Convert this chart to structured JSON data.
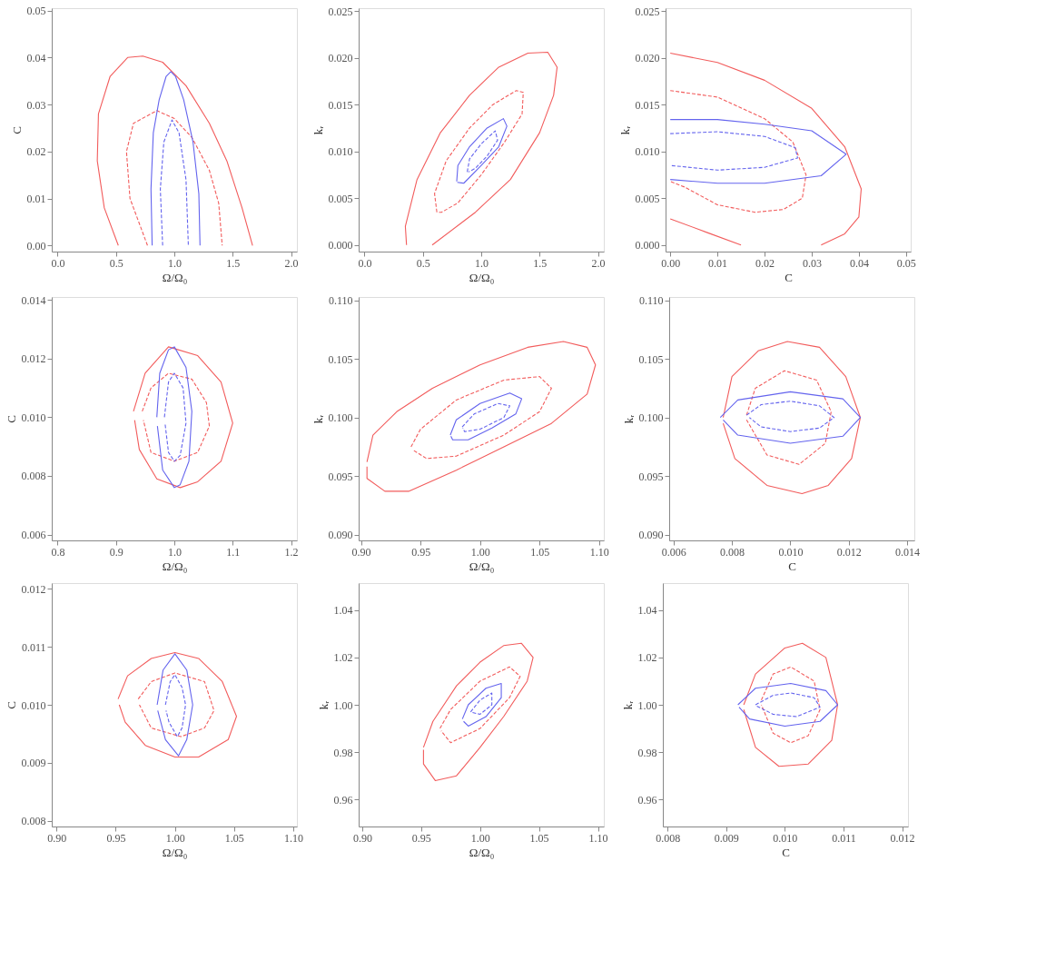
{
  "chart_data": [
    {
      "type": "line",
      "xlabel": "Ω/Ω₀",
      "ylabel": "C",
      "xlim": [
        -0.05,
        2.05
      ],
      "ylim": [
        -0.0013,
        0.0505
      ],
      "xticks": [
        {
          "value": 0,
          "label": "0.0"
        },
        0.5,
        {
          "value": 1,
          "label": "1.0"
        },
        1.5,
        {
          "value": 2,
          "label": "2.0"
        }
      ],
      "yticks": [
        {
          "value": 0,
          "label": "0.00"
        },
        0.01,
        0.02,
        0.03,
        0.04,
        0.05
      ],
      "series": [
        {
          "color": "#f25c5c",
          "line_style": "solid",
          "x": [
            0.52,
            0.4,
            0.34,
            0.35,
            0.45,
            0.6,
            0.73,
            0.9,
            1.1,
            1.3,
            1.45,
            1.58,
            1.67
          ],
          "values": [
            0,
            0.008,
            0.018,
            0.028,
            0.036,
            0.04,
            0.0403,
            0.039,
            0.034,
            0.026,
            0.018,
            0.008,
            0
          ]
        },
        {
          "color": "#f25c5c",
          "line_style": "dashed",
          "x": [
            0.77,
            0.62,
            0.59,
            0.65,
            0.85,
            1.0,
            1.15,
            1.3,
            1.38,
            1.41
          ],
          "values": [
            0,
            0.01,
            0.02,
            0.026,
            0.0287,
            0.027,
            0.023,
            0.016,
            0.009,
            0
          ]
        },
        {
          "color": "#6464ee",
          "line_style": "solid",
          "x": [
            0.81,
            0.8,
            0.82,
            0.87,
            0.93,
            0.97,
            1.01,
            1.08,
            1.16,
            1.21,
            1.22
          ],
          "values": [
            0,
            0.012,
            0.024,
            0.031,
            0.036,
            0.037,
            0.036,
            0.031,
            0.022,
            0.011,
            0
          ]
        },
        {
          "color": "#6464ee",
          "line_style": "dashed",
          "x": [
            0.9,
            0.88,
            0.91,
            0.98,
            1.04,
            1.1,
            1.12
          ],
          "values": [
            0,
            0.012,
            0.022,
            0.0267,
            0.024,
            0.014,
            0
          ]
        }
      ]
    },
    {
      "type": "line",
      "xlabel": "Ω/Ω₀",
      "ylabel": "kᵣ",
      "xlim": [
        -0.05,
        2.05
      ],
      "ylim": [
        -0.0007,
        0.0253
      ],
      "xticks": [
        {
          "value": 0,
          "label": "0.0"
        },
        0.5,
        {
          "value": 1,
          "label": "1.0"
        },
        1.5,
        {
          "value": 2,
          "label": "2.0"
        }
      ],
      "yticks": [
        {
          "value": 0,
          "label": "0.000"
        },
        0.005,
        {
          "value": 0.01,
          "label": "0.010"
        },
        0.015,
        {
          "value": 0.02,
          "label": "0.020"
        },
        0.025
      ],
      "series": [
        {
          "color": "#f25c5c",
          "line_style": "solid",
          "x": [
            0.36,
            0.35,
            0.45,
            0.65,
            0.9,
            1.15,
            1.4,
            1.57,
            1.65,
            1.62,
            1.5,
            1.25,
            0.95,
            0.58
          ],
          "values": [
            0,
            0.002,
            0.007,
            0.012,
            0.016,
            0.019,
            0.0205,
            0.0206,
            0.019,
            0.016,
            0.012,
            0.007,
            0.0035,
            0
          ]
        },
        {
          "color": "#f25c5c",
          "line_style": "dashed",
          "x": [
            0.62,
            0.6,
            0.7,
            0.9,
            1.1,
            1.3,
            1.36,
            1.35,
            1.2,
            1.0,
            0.8,
            0.66,
            0.625
          ],
          "values": [
            0.0035,
            0.0055,
            0.009,
            0.0125,
            0.015,
            0.0165,
            0.0163,
            0.014,
            0.011,
            0.0075,
            0.0045,
            0.0035,
            0.0035
          ]
        },
        {
          "color": "#6464ee",
          "line_style": "solid",
          "x": [
            0.79,
            0.8,
            0.9,
            1.05,
            1.19,
            1.22,
            1.15,
            1.0,
            0.85,
            0.795
          ],
          "values": [
            0.0068,
            0.0085,
            0.0105,
            0.0125,
            0.0135,
            0.0127,
            0.0105,
            0.0085,
            0.0066,
            0.0067
          ]
        },
        {
          "color": "#6464ee",
          "line_style": "dashed",
          "x": [
            0.88,
            0.9,
            1.0,
            1.12,
            1.14,
            1.05,
            0.95,
            0.89
          ],
          "values": [
            0.0078,
            0.0092,
            0.0108,
            0.0122,
            0.0112,
            0.0095,
            0.0082,
            0.0078
          ]
        }
      ]
    },
    {
      "type": "line",
      "xlabel": "C",
      "ylabel": "kᵣ",
      "xlim": [
        -0.001,
        0.051
      ],
      "ylim": [
        -0.0007,
        0.0253
      ],
      "xticks": [
        {
          "value": 0,
          "label": "0.00"
        },
        0.01,
        0.02,
        0.03,
        0.04,
        0.05
      ],
      "yticks": [
        {
          "value": 0,
          "label": "0.000"
        },
        0.005,
        {
          "value": 0.01,
          "label": "0.010"
        },
        0.015,
        {
          "value": 0.02,
          "label": "0.020"
        },
        0.025
      ],
      "series": [
        {
          "color": "#f25c5c",
          "line_style": "solid",
          "x": [
            0,
            0.01,
            0.02,
            0.03,
            0.037,
            0.0405,
            0.04,
            0.037,
            0.032,
            null,
            0.015,
            0.008,
            0
          ],
          "values": [
            0.0205,
            0.0195,
            0.0176,
            0.0146,
            0.0105,
            0.006,
            0.003,
            0.0012,
            0,
            null,
            0,
            0.0013,
            0.0028
          ]
        },
        {
          "color": "#f25c5c",
          "line_style": "dashed",
          "x": [
            0,
            0.01,
            0.02,
            0.026,
            0.0288,
            0.028,
            0.024,
            0.018,
            0.01,
            0.003,
            0
          ],
          "values": [
            0.0165,
            0.0158,
            0.0135,
            0.011,
            0.0075,
            0.005,
            0.0038,
            0.0035,
            0.0043,
            0.0062,
            0.0068
          ]
        },
        {
          "color": "#6464ee",
          "line_style": "solid",
          "x": [
            0,
            0.01,
            0.02,
            0.03,
            0.0373,
            0.032,
            0.02,
            0.01,
            0
          ],
          "values": [
            0.0134,
            0.0134,
            0.0129,
            0.0122,
            0.0097,
            0.0074,
            0.0066,
            0.0066,
            0.007
          ]
        },
        {
          "color": "#6464ee",
          "line_style": "dashed",
          "x": [
            0,
            0.01,
            0.02,
            0.0265,
            0.027,
            0.02,
            0.01,
            0
          ],
          "values": [
            0.0119,
            0.0121,
            0.0116,
            0.0104,
            0.0093,
            0.0083,
            0.008,
            0.0085
          ]
        }
      ]
    },
    {
      "type": "line",
      "xlabel": "Ω/Ω₀",
      "ylabel": "C",
      "xlim": [
        0.79,
        1.21
      ],
      "ylim": [
        0.0058,
        0.0141
      ],
      "xticks": [
        0.8,
        0.9,
        {
          "value": 1,
          "label": "1.0"
        },
        1.1,
        1.2
      ],
      "yticks": [
        0.006,
        0.008,
        {
          "value": 0.01,
          "label": "0.010"
        },
        0.012,
        0.014
      ],
      "series": [
        {
          "color": "#f25c5c",
          "line_style": "solid",
          "x": [
            0.93,
            0.95,
            0.99,
            1.04,
            1.08,
            1.1,
            1.08,
            1.04,
            1.01,
            0.97,
            0.94,
            0.932
          ],
          "values": [
            0.0102,
            0.0115,
            0.0124,
            0.0121,
            0.0112,
            0.0098,
            0.0085,
            0.0078,
            0.0076,
            0.0079,
            0.0089,
            0.0099
          ]
        },
        {
          "color": "#f25c5c",
          "line_style": "dashed",
          "x": [
            0.945,
            0.96,
            0.99,
            1.03,
            1.055,
            1.06,
            1.04,
            1.0,
            0.96,
            0.947
          ],
          "values": [
            0.0102,
            0.011,
            0.0115,
            0.0113,
            0.0105,
            0.0097,
            0.0088,
            0.0085,
            0.0088,
            0.0099
          ]
        },
        {
          "color": "#6464ee",
          "line_style": "solid",
          "x": [
            0.97,
            0.975,
            0.99,
            1.0,
            1.02,
            1.03,
            1.025,
            1.01,
            1.0,
            0.98,
            0.971
          ],
          "values": [
            0.01,
            0.0115,
            0.0123,
            0.0124,
            0.0117,
            0.0102,
            0.0085,
            0.0077,
            0.0076,
            0.0082,
            0.0097
          ]
        },
        {
          "color": "#6464ee",
          "line_style": "dashed",
          "x": [
            0.983,
            0.99,
            1.0,
            1.015,
            1.02,
            1.01,
            1.0,
            0.99,
            0.984
          ],
          "values": [
            0.01,
            0.0112,
            0.0115,
            0.011,
            0.0098,
            0.0087,
            0.0085,
            0.0088,
            0.0098
          ]
        }
      ]
    },
    {
      "type": "line",
      "xlabel": "Ω/Ω₀",
      "ylabel": "kᵣ",
      "xlim": [
        0.898,
        1.104
      ],
      "ylim": [
        0.0895,
        0.1103
      ],
      "xticks": [
        {
          "value": 0.9,
          "label": "0.90"
        },
        0.95,
        {
          "value": 1,
          "label": "1.00"
        },
        1.05,
        {
          "value": 1.1,
          "label": "1.10"
        }
      ],
      "yticks": [
        {
          "value": 0.09,
          "label": "0.090"
        },
        0.095,
        {
          "value": 0.1,
          "label": "0.100"
        },
        0.105,
        {
          "value": 0.11,
          "label": "0.110"
        }
      ],
      "series": [
        {
          "color": "#f25c5c",
          "line_style": "solid",
          "x": [
            0.905,
            0.91,
            0.93,
            0.96,
            1.0,
            1.04,
            1.07,
            1.09,
            1.097,
            1.09,
            1.06,
            1.02,
            0.98,
            0.94,
            0.92,
            0.905,
            0.905
          ],
          "values": [
            0.0962,
            0.0985,
            0.1005,
            0.1025,
            0.1045,
            0.106,
            0.1065,
            0.106,
            0.1045,
            0.102,
            0.0995,
            0.0975,
            0.0955,
            0.0937,
            0.0937,
            0.0948,
            0.0958
          ]
        },
        {
          "color": "#f25c5c",
          "line_style": "dashed",
          "x": [
            0.942,
            0.95,
            0.98,
            1.02,
            1.05,
            1.06,
            1.05,
            1.02,
            0.98,
            0.955,
            0.944
          ],
          "values": [
            0.0975,
            0.099,
            0.1015,
            0.1032,
            0.1035,
            0.1025,
            0.1005,
            0.0985,
            0.0967,
            0.0965,
            0.0972
          ]
        },
        {
          "color": "#6464ee",
          "line_style": "solid",
          "x": [
            0.975,
            0.98,
            1.0,
            1.025,
            1.035,
            1.03,
            1.01,
            0.99,
            0.977,
            0.9755
          ],
          "values": [
            0.0985,
            0.0998,
            0.1012,
            0.1021,
            0.1016,
            0.1003,
            0.0991,
            0.0981,
            0.0981,
            0.0984
          ]
        },
        {
          "color": "#6464ee",
          "line_style": "dashed",
          "x": [
            0.985,
            0.995,
            1.015,
            1.025,
            1.02,
            1.0,
            0.987,
            0.9855
          ],
          "values": [
            0.0992,
            0.1003,
            0.1012,
            0.101,
            0.1,
            0.099,
            0.0988,
            0.0991
          ]
        }
      ]
    },
    {
      "type": "line",
      "xlabel": "C",
      "ylabel": "kᵣ",
      "xlim": [
        0.00585,
        0.01425
      ],
      "ylim": [
        0.0895,
        0.1103
      ],
      "xticks": [
        0.006,
        0.008,
        {
          "value": 0.01,
          "label": "0.010"
        },
        0.012,
        0.014
      ],
      "yticks": [
        {
          "value": 0.09,
          "label": "0.090"
        },
        0.095,
        {
          "value": 0.1,
          "label": "0.100"
        },
        0.105,
        {
          "value": 0.11,
          "label": "0.110"
        }
      ],
      "series": [
        {
          "color": "#f25c5c",
          "line_style": "solid",
          "x": [
            0.0077,
            0.008,
            0.0089,
            0.0099,
            0.011,
            0.0119,
            0.0124,
            0.0121,
            0.0113,
            0.0104,
            0.0092,
            0.0081,
            0.0077
          ],
          "values": [
            0.1,
            0.1035,
            0.1057,
            0.1065,
            0.106,
            0.1035,
            0.1,
            0.0965,
            0.0942,
            0.0935,
            0.0942,
            0.0965,
            0.0995
          ]
        },
        {
          "color": "#f25c5c",
          "line_style": "dashed",
          "x": [
            0.0085,
            0.0088,
            0.0098,
            0.0109,
            0.0114,
            0.0112,
            0.0103,
            0.0092,
            0.0085
          ],
          "values": [
            0.1002,
            0.1025,
            0.104,
            0.1032,
            0.1005,
            0.0978,
            0.096,
            0.0968,
            0.0998
          ]
        },
        {
          "color": "#6464ee",
          "line_style": "solid",
          "x": [
            0.0076,
            0.0082,
            0.01,
            0.0118,
            0.0124,
            0.0118,
            0.01,
            0.0082,
            0.0077
          ],
          "values": [
            0.1,
            0.1015,
            0.1022,
            0.1016,
            0.1,
            0.0984,
            0.0978,
            0.0985,
            0.0998
          ]
        },
        {
          "color": "#6464ee",
          "line_style": "dashed",
          "x": [
            0.0085,
            0.009,
            0.01,
            0.011,
            0.0115,
            0.011,
            0.01,
            0.009,
            0.0086
          ],
          "values": [
            0.1002,
            0.1011,
            0.1014,
            0.101,
            0.1,
            0.0991,
            0.0988,
            0.0992,
            0.1
          ]
        }
      ]
    },
    {
      "type": "line",
      "xlabel": "Ω/Ω₀",
      "ylabel": "C",
      "xlim": [
        0.896,
        1.103
      ],
      "ylim": [
        0.0079,
        0.0121
      ],
      "xticks": [
        {
          "value": 0.9,
          "label": "0.90"
        },
        0.95,
        {
          "value": 1,
          "label": "1.00"
        },
        1.05,
        {
          "value": 1.1,
          "label": "1.10"
        }
      ],
      "yticks": [
        0.008,
        0.009,
        {
          "value": 0.01,
          "label": "0.010"
        },
        0.011,
        0.012
      ],
      "series": [
        {
          "color": "#f25c5c",
          "line_style": "solid",
          "x": [
            0.952,
            0.96,
            0.98,
            1.0,
            1.02,
            1.04,
            1.052,
            1.045,
            1.02,
            1.0,
            0.975,
            0.958,
            0.953
          ],
          "values": [
            0.0101,
            0.0105,
            0.0108,
            0.0109,
            0.0108,
            0.0104,
            0.0098,
            0.0094,
            0.0091,
            0.0091,
            0.0093,
            0.0097,
            0.01
          ]
        },
        {
          "color": "#f25c5c",
          "line_style": "dashed",
          "x": [
            0.969,
            0.98,
            1.0,
            1.025,
            1.033,
            1.025,
            1.005,
            0.98,
            0.97
          ],
          "values": [
            0.0101,
            0.0104,
            0.01055,
            0.0104,
            0.0099,
            0.0096,
            0.00945,
            0.0096,
            0.01
          ]
        },
        {
          "color": "#6464ee",
          "line_style": "solid",
          "x": [
            0.985,
            0.99,
            1.0,
            1.01,
            1.015,
            1.01,
            1.003,
            0.992,
            0.9855
          ],
          "values": [
            0.01,
            0.0106,
            0.01088,
            0.0106,
            0.01,
            0.0094,
            0.00912,
            0.0094,
            0.0099
          ]
        },
        {
          "color": "#6464ee",
          "line_style": "dashed",
          "x": [
            0.992,
            0.996,
            1.0,
            1.006,
            1.009,
            1.006,
            1.002,
            0.995,
            0.9925
          ],
          "values": [
            0.01,
            0.0104,
            0.01052,
            0.0103,
            0.01,
            0.0096,
            0.00945,
            0.0097,
            0.0099
          ]
        }
      ]
    },
    {
      "type": "line",
      "xlabel": "Ω/Ω₀",
      "ylabel": "kᵣ",
      "xlim": [
        0.897,
        1.105
      ],
      "ylim": [
        0.9486,
        1.0514
      ],
      "xticks": [
        {
          "value": 0.9,
          "label": "0.90"
        },
        0.95,
        {
          "value": 1,
          "label": "1.00"
        },
        1.05,
        {
          "value": 1.1,
          "label": "1.10"
        }
      ],
      "yticks": [
        0.96,
        0.98,
        {
          "value": 1,
          "label": "1.00"
        },
        1.02,
        1.04
      ],
      "series": [
        {
          "color": "#f25c5c",
          "line_style": "solid",
          "x": [
            0.952,
            0.96,
            0.98,
            1.0,
            1.02,
            1.035,
            1.045,
            1.04,
            1.02,
            1.0,
            0.98,
            0.962,
            0.952,
            0.952
          ],
          "values": [
            0.982,
            0.993,
            1.008,
            1.018,
            1.025,
            1.026,
            1.02,
            1.01,
            0.995,
            0.982,
            0.97,
            0.968,
            0.975,
            0.981
          ]
        },
        {
          "color": "#f25c5c",
          "line_style": "dashed",
          "x": [
            0.966,
            0.975,
            1.0,
            1.025,
            1.034,
            1.025,
            1.0,
            0.975,
            0.967
          ],
          "values": [
            0.99,
            0.998,
            1.01,
            1.016,
            1.012,
            1.003,
            0.99,
            0.984,
            0.989
          ]
        },
        {
          "color": "#6464ee",
          "line_style": "solid",
          "x": [
            0.985,
            0.99,
            1.005,
            1.018,
            1.018,
            1.005,
            0.99,
            0.986
          ],
          "values": [
            0.994,
            1.0,
            1.007,
            1.009,
            1.003,
            0.995,
            0.991,
            0.993
          ]
        },
        {
          "color": "#6464ee",
          "line_style": "dashed",
          "x": [
            0.992,
            1.0,
            1.01,
            1.01,
            1.0,
            0.993
          ],
          "values": [
            0.997,
            1.002,
            1.005,
            1.0,
            0.996,
            0.9968
          ]
        }
      ]
    },
    {
      "type": "line",
      "xlabel": "C",
      "ylabel": "kᵣ",
      "xlim": [
        0.00792,
        0.0121
      ],
      "ylim": [
        0.9486,
        1.0514
      ],
      "xticks": [
        0.008,
        0.009,
        {
          "value": 0.01,
          "label": "0.010"
        },
        0.011,
        0.012
      ],
      "yticks": [
        0.96,
        0.98,
        {
          "value": 1,
          "label": "1.00"
        },
        1.02,
        1.04
      ],
      "series": [
        {
          "color": "#f25c5c",
          "line_style": "solid",
          "x": [
            0.0093,
            0.0095,
            0.01,
            0.0103,
            0.0107,
            0.0109,
            0.0108,
            0.0104,
            0.0099,
            0.0095,
            0.0093
          ],
          "values": [
            1.0,
            1.013,
            1.024,
            1.026,
            1.02,
            1.0,
            0.985,
            0.975,
            0.974,
            0.982,
            0.998
          ]
        },
        {
          "color": "#f25c5c",
          "line_style": "dashed",
          "x": [
            0.0096,
            0.0098,
            0.0101,
            0.0105,
            0.0106,
            0.0104,
            0.0101,
            0.0098,
            0.0096
          ],
          "values": [
            1.002,
            1.013,
            1.016,
            1.01,
            0.998,
            0.987,
            0.984,
            0.988,
            1.0
          ]
        },
        {
          "color": "#6464ee",
          "line_style": "solid",
          "x": [
            0.0092,
            0.0095,
            0.0101,
            0.0107,
            0.0109,
            0.0106,
            0.01,
            0.0094,
            0.00922
          ],
          "values": [
            1.0,
            1.007,
            1.009,
            1.006,
            1.0,
            0.993,
            0.991,
            0.994,
            0.999
          ]
        },
        {
          "color": "#6464ee",
          "line_style": "dashed",
          "x": [
            0.0095,
            0.0098,
            0.0101,
            0.0105,
            0.0106,
            0.0102,
            0.0098,
            0.00952
          ],
          "values": [
            1.0,
            1.004,
            1.005,
            1.003,
            0.999,
            0.995,
            0.996,
            0.9995
          ]
        }
      ]
    }
  ]
}
